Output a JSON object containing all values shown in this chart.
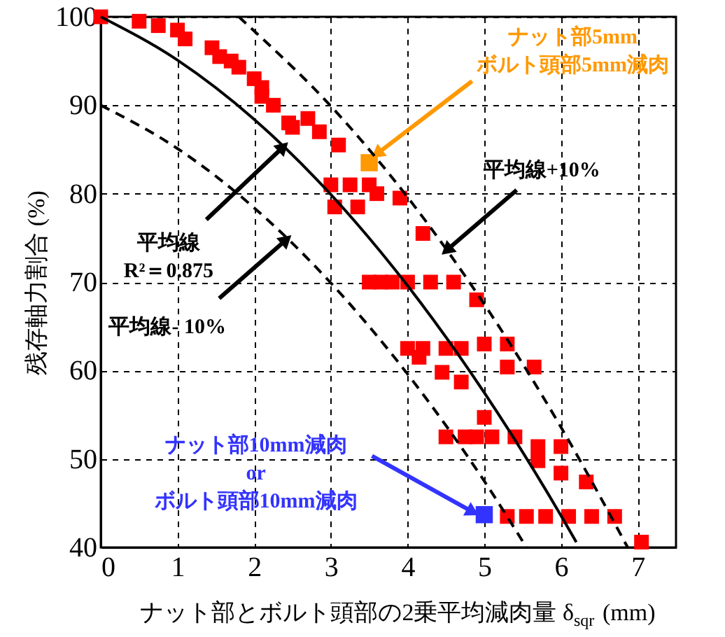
{
  "chart_data": {
    "type": "scatter",
    "xlabel": "ナット部とボルト頭部の2乗平均減肉量 δ$_{sqr}$ (mm)",
    "ylabel": "残存軸力割合 (%)",
    "xlim": [
      0,
      7.5
    ],
    "xticks": [
      0,
      1,
      2,
      3,
      4,
      5,
      6,
      7
    ],
    "ylim": [
      40,
      100
    ],
    "yticks": [
      40,
      50,
      60,
      70,
      80,
      90,
      100
    ],
    "grid": true,
    "marker": "square",
    "series": [
      {
        "color": "#ff0000",
        "x": [
          0,
          0.5,
          0.75,
          1.0,
          1.1,
          1.45,
          1.55,
          1.7,
          1.8,
          2.0,
          2.1,
          2.1,
          2.25,
          2.45,
          2.5,
          2.7,
          2.85,
          3.1,
          3.0,
          3.25,
          3.5,
          3.6,
          3.9,
          3.05,
          3.35,
          4.2,
          3.5,
          3.65,
          3.8,
          4.0,
          4.3,
          4.6,
          4.9,
          4.0,
          4.2,
          4.5,
          4.7,
          5.0,
          5.3,
          4.15,
          5.3,
          5.65,
          4.45,
          4.7,
          5.0,
          4.5,
          4.75,
          4.9,
          5.1,
          5.4,
          5.7,
          6.0,
          5.7,
          6.0,
          6.33,
          5.3,
          5.55,
          5.8,
          6.1,
          6.4,
          6.7,
          7.05
        ],
        "values": [
          100,
          99.5,
          99,
          98.5,
          97.5,
          96.5,
          95.5,
          95,
          94.3,
          93,
          92,
          91,
          90,
          88,
          87.5,
          88.5,
          87,
          85.5,
          81,
          81,
          81,
          80,
          79.5,
          78.5,
          78.5,
          75.5,
          70,
          70,
          70,
          70,
          70,
          70,
          68,
          62.5,
          62.5,
          62.5,
          62.5,
          63,
          63,
          61.5,
          60.4,
          60.4,
          59.8,
          58.7,
          54.7,
          52.5,
          52.5,
          52.5,
          52.5,
          52.5,
          51.4,
          51.4,
          49.8,
          48.4,
          47.4,
          43.5,
          43.5,
          43.5,
          43.5,
          43.5,
          43.5,
          40.6
        ]
      },
      {
        "color": "#ff9900",
        "x": [
          3.5
        ],
        "values": [
          83.5
        ]
      },
      {
        "color": "#3333ff",
        "x": [
          5.0
        ],
        "values": [
          43.7
        ]
      },
      {
        "type": "line",
        "color": "#000000",
        "line_style": "solid",
        "marker": "none",
        "x": [
          0,
          1,
          2,
          3,
          4,
          5,
          6,
          6.2
        ],
        "values": [
          100,
          95.1,
          88.4,
          79.9,
          69.6,
          57.5,
          43.6,
          40.6
        ]
      },
      {
        "type": "line",
        "color": "#000000",
        "line_style": "dashed",
        "marker": "none",
        "x": [
          1.8,
          2,
          3,
          4,
          5,
          6,
          6.87
        ],
        "values": [
          100,
          98.4,
          89.9,
          79.6,
          67.5,
          53.6,
          40
        ]
      },
      {
        "type": "line",
        "color": "#000000",
        "line_style": "dashed",
        "marker": "none",
        "x": [
          0,
          1,
          2,
          3,
          4,
          5,
          5.55
        ],
        "values": [
          90,
          85.1,
          78.4,
          69.9,
          59.6,
          47.5,
          40
        ]
      }
    ],
    "annotations": [
      {
        "text": "平均線\nR²＝0.875",
        "x": 2.38,
        "y": 85.3
      },
      {
        "text": "平均線- 10%",
        "x": 2.42,
        "y": 74.8
      },
      {
        "text": "平均線+10%",
        "x": 4.51,
        "y": 73.6
      },
      {
        "text": "ナット部5mm\nボルト頭部5mm減肉",
        "x": 3.6,
        "y": 84.5
      },
      {
        "text": "ナット部10mm減肉\nor\nボルト頭部10mm減肉",
        "x": 4.85,
        "y": 44.0
      }
    ]
  }
}
